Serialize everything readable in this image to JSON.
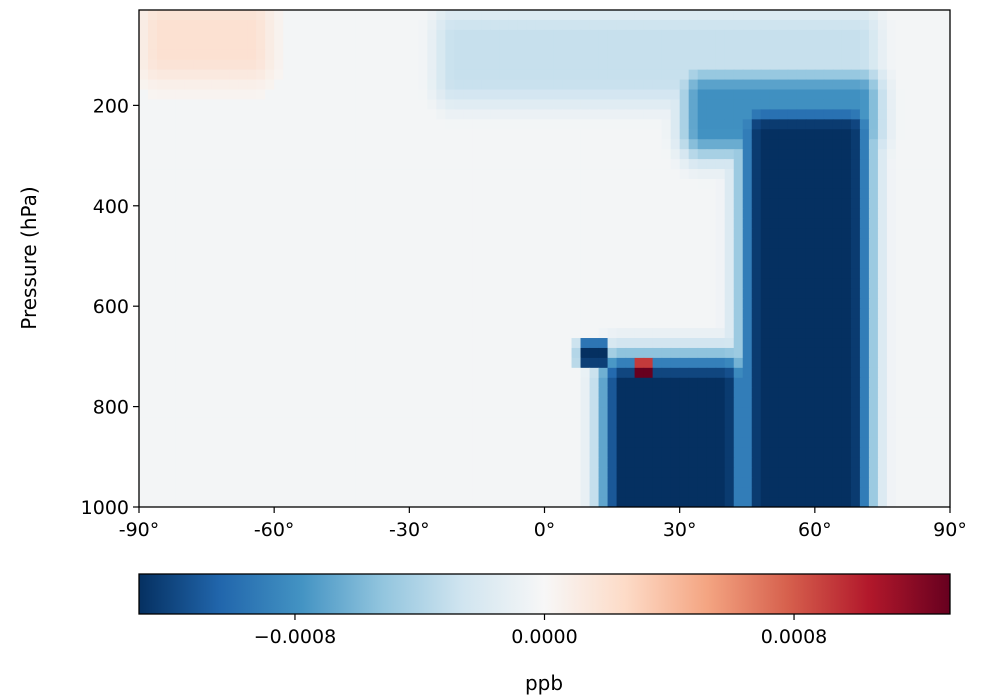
{
  "chart_data": {
    "type": "heatmap",
    "title": "",
    "xlabel": "",
    "ylabel": "Pressure (hPa)",
    "xlim": [
      -90,
      90
    ],
    "ylim": [
      1000,
      10
    ],
    "y_inverted": true,
    "x_ticks": [
      {
        "value": -90,
        "label": "-90°"
      },
      {
        "value": -60,
        "label": "-60°"
      },
      {
        "value": -30,
        "label": "-30°"
      },
      {
        "value": 0,
        "label": "0°"
      },
      {
        "value": 30,
        "label": "30°"
      },
      {
        "value": 60,
        "label": "60°"
      },
      {
        "value": 90,
        "label": "90°"
      }
    ],
    "y_ticks": [
      {
        "value": 200,
        "label": "200"
      },
      {
        "value": 400,
        "label": "400"
      },
      {
        "value": 600,
        "label": "600"
      },
      {
        "value": 800,
        "label": "800"
      },
      {
        "value": 1000,
        "label": "1000"
      }
    ],
    "colormap": "RdBu_r",
    "colorbar": {
      "orientation": "horizontal",
      "label": "ppb",
      "vmin": -0.0013,
      "vmax": 0.0013,
      "ticks": [
        {
          "value": -0.0008,
          "label": "−0.0008"
        },
        {
          "value": 0.0,
          "label": "0.0000"
        },
        {
          "value": 0.0008,
          "label": "0.0008"
        }
      ]
    },
    "features": [
      {
        "description": "strong negative column",
        "lat_range": [
          48,
          68
        ],
        "pressure_range": [
          250,
          1000
        ],
        "value": -0.0013
      },
      {
        "description": "negative plume upper band",
        "lat_range": [
          35,
          70
        ],
        "pressure_range": [
          180,
          250
        ],
        "value": -0.0008
      },
      {
        "description": "strong negative lower lobe",
        "lat_range": [
          17,
          40
        ],
        "pressure_range": [
          750,
          1000
        ],
        "value": -0.0013
      },
      {
        "description": "negative cell",
        "lat_range": [
          8,
          13
        ],
        "pressure_range": [
          680,
          710
        ],
        "value": -0.0013
      },
      {
        "description": "strong positive cell",
        "lat_range": [
          20,
          23
        ],
        "pressure_range": [
          720,
          760
        ],
        "value": 0.0013
      },
      {
        "description": "weak positive upper band",
        "lat_range": [
          -85,
          -65
        ],
        "pressure_range": [
          40,
          100
        ],
        "value": 0.0002
      },
      {
        "description": "weak negative tropopause band",
        "lat_range": [
          -20,
          70
        ],
        "pressure_range": [
          60,
          150
        ],
        "value": -0.0003
      }
    ]
  }
}
